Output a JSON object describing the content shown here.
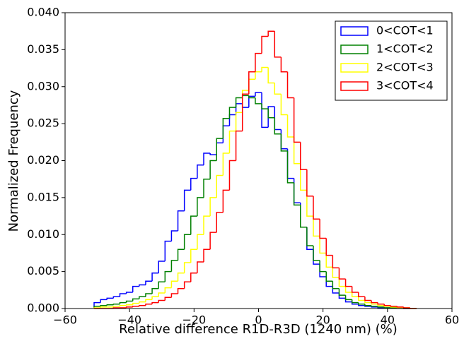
{
  "chart_data": {
    "type": "histogram",
    "histtype": "step",
    "x_label": "Relative difference R1D-R3D (1240 nm) (%)",
    "y_label": "Normalized Frequency",
    "bins": [
      -51,
      -49,
      -47,
      -45,
      -43,
      -41,
      -39,
      -37,
      -35,
      -33,
      -31,
      -29,
      -27,
      -25,
      -23,
      -21,
      -19,
      -17,
      -15,
      -13,
      -11,
      -9,
      -7,
      -5,
      -3,
      -1,
      1,
      3,
      5,
      7,
      9,
      11,
      13,
      15,
      17,
      19,
      21,
      23,
      25,
      27,
      29,
      31,
      33,
      35,
      37,
      39,
      41,
      43,
      45,
      47,
      49
    ],
    "series": [
      {
        "name": "0<COT<1",
        "color": "#0000ff",
        "values": [
          0.0008,
          0.0012,
          0.0014,
          0.0016,
          0.002,
          0.0022,
          0.003,
          0.0032,
          0.0037,
          0.0048,
          0.0064,
          0.0091,
          0.0105,
          0.0132,
          0.016,
          0.0176,
          0.0194,
          0.021,
          0.0208,
          0.0224,
          0.0247,
          0.0262,
          0.0277,
          0.0272,
          0.0287,
          0.0292,
          0.0245,
          0.0273,
          0.0242,
          0.0216,
          0.0176,
          0.0143,
          0.011,
          0.008,
          0.006,
          0.0043,
          0.003,
          0.0021,
          0.0014,
          0.0009,
          0.0006,
          0.0004,
          0.0003,
          0.0002,
          0.0001,
          0.0001,
          0.0001,
          0,
          0,
          0
        ]
      },
      {
        "name": "1<COT<2",
        "color": "#008000",
        "values": [
          0.0003,
          0.0004,
          0.0005,
          0.0006,
          0.0008,
          0.001,
          0.0013,
          0.0016,
          0.002,
          0.0027,
          0.0036,
          0.005,
          0.0065,
          0.008,
          0.01,
          0.0125,
          0.015,
          0.0175,
          0.02,
          0.023,
          0.0257,
          0.0272,
          0.0285,
          0.0288,
          0.0285,
          0.0277,
          0.027,
          0.0258,
          0.0236,
          0.0213,
          0.017,
          0.014,
          0.011,
          0.0085,
          0.0065,
          0.005,
          0.0037,
          0.0027,
          0.0018,
          0.0012,
          0.0008,
          0.0006,
          0.0004,
          0.0003,
          0.0002,
          0.0001,
          0.0001,
          0.0001,
          0,
          0
        ]
      },
      {
        "name": "2<COT<3",
        "color": "#ffff00",
        "values": [
          0.0001,
          0.0002,
          0.0002,
          0.0003,
          0.0004,
          0.0005,
          0.0007,
          0.0009,
          0.0012,
          0.0016,
          0.0021,
          0.0028,
          0.0037,
          0.0048,
          0.0062,
          0.008,
          0.01,
          0.0125,
          0.015,
          0.018,
          0.021,
          0.024,
          0.0265,
          0.0295,
          0.031,
          0.032,
          0.0326,
          0.0305,
          0.029,
          0.0262,
          0.0232,
          0.0196,
          0.016,
          0.0125,
          0.0098,
          0.0075,
          0.0056,
          0.0042,
          0.003,
          0.0022,
          0.0016,
          0.0011,
          0.0008,
          0.0006,
          0.0004,
          0.0003,
          0.0002,
          0.0001,
          0.0001,
          0
        ]
      },
      {
        "name": "3<COT<4",
        "color": "#ff0000",
        "values": [
          0,
          0,
          0,
          0.0001,
          0.0001,
          0.0002,
          0.0003,
          0.0004,
          0.0006,
          0.0008,
          0.0011,
          0.0015,
          0.002,
          0.0027,
          0.0036,
          0.0048,
          0.0063,
          0.008,
          0.0103,
          0.013,
          0.016,
          0.02,
          0.024,
          0.029,
          0.032,
          0.0345,
          0.0368,
          0.0375,
          0.034,
          0.032,
          0.0285,
          0.0225,
          0.0188,
          0.0152,
          0.0121,
          0.0095,
          0.0072,
          0.0055,
          0.004,
          0.003,
          0.0022,
          0.0016,
          0.0011,
          0.0008,
          0.0006,
          0.0004,
          0.0003,
          0.0002,
          0.0001,
          0
        ]
      }
    ],
    "xlim": [
      -60,
      60
    ],
    "ylim": [
      0,
      0.04
    ],
    "xticks": [
      {
        "value": -60,
        "label": "−60"
      },
      {
        "value": -40,
        "label": "−40"
      },
      {
        "value": -20,
        "label": "−20"
      },
      0,
      20,
      40,
      60
    ],
    "yticks": [
      {
        "value": 0,
        "label": "0.000"
      },
      {
        "value": 0.005,
        "label": "0.005"
      },
      {
        "value": 0.01,
        "label": "0.010"
      },
      {
        "value": 0.015,
        "label": "0.015"
      },
      {
        "value": 0.02,
        "label": "0.020"
      },
      {
        "value": 0.025,
        "label": "0.025"
      },
      {
        "value": 0.03,
        "label": "0.030"
      },
      {
        "value": 0.035,
        "label": "0.035"
      },
      {
        "value": 0.04,
        "label": "0.040"
      }
    ],
    "legend": "upper right"
  }
}
